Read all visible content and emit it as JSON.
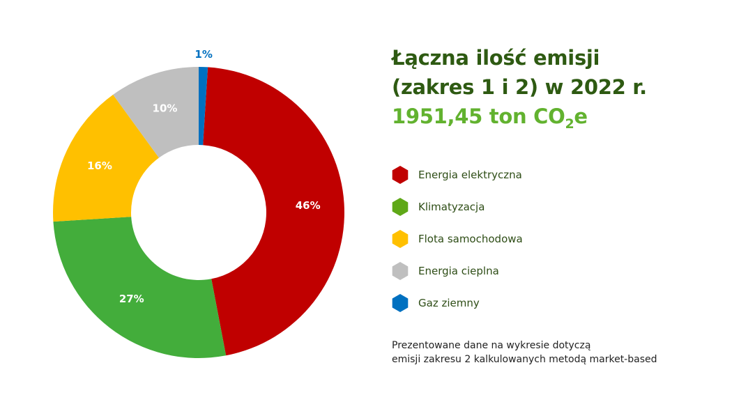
{
  "title": {
    "line1": "Łączna ilość emisji",
    "line2": "(zakres 1 i 2) w 2022 r.",
    "total_value": "1951,45 ton CO",
    "total_subscript": "2",
    "total_suffix": "e"
  },
  "chart_data": {
    "type": "pie",
    "subtype": "donut",
    "categories": [
      "Energia elektryczna",
      "Klimatyzacja",
      "Flota samochodowa",
      "Energia cieplna",
      "Gaz ziemny"
    ],
    "values": [
      46,
      27,
      16,
      10,
      1
    ],
    "labels": [
      "46%",
      "27%",
      "16%",
      "10%",
      "1%"
    ],
    "colors": [
      "#c00000",
      "#43ad3b",
      "#ffc000",
      "#bfbfbf",
      "#0070c0"
    ],
    "label_colors": [
      "#ffffff",
      "#ffffff",
      "#ffffff",
      "#ffffff",
      "#0070c0"
    ],
    "legend_position": "right",
    "legend_icon": "hexagon-icon"
  },
  "legend": [
    {
      "label": "Energia elektryczna",
      "color": "#c00000"
    },
    {
      "label": "Klimatyzacja",
      "color": "#5fa818"
    },
    {
      "label": "Flota samochodowa",
      "color": "#ffc000"
    },
    {
      "label": "Energia cieplna",
      "color": "#bfbfbf"
    },
    {
      "label": "Gaz ziemny",
      "color": "#0070c0"
    }
  ],
  "footnote": {
    "line1": "Prezentowane dane na wykresie dotyczą",
    "line2": "emisji zakresu 2 kalkulowanych metodą market-based"
  }
}
